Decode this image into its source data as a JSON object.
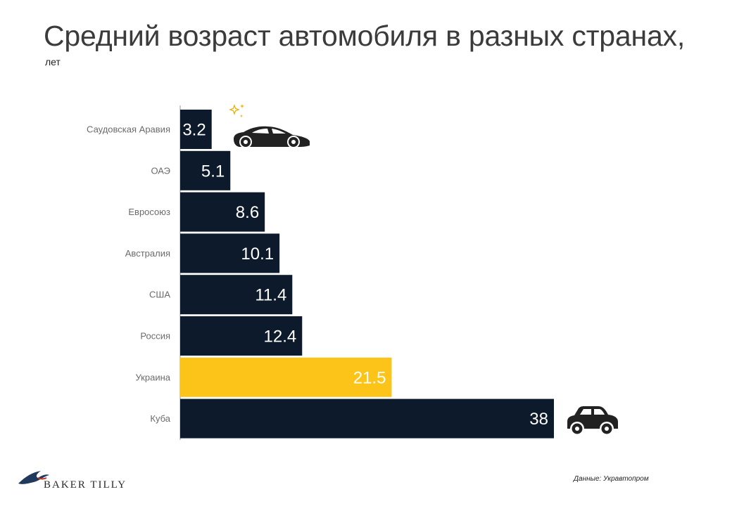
{
  "title": "Средний возраст автомобиля в разных странах,",
  "subtitle": "лет",
  "chart_data": {
    "type": "bar",
    "orientation": "horizontal",
    "categories": [
      "Саудовская Аравия",
      "ОАЭ",
      "Евросоюз",
      "Австралия",
      "США",
      "Россия",
      "Украина",
      "Куба"
    ],
    "values": [
      3.2,
      5.1,
      8.6,
      10.1,
      11.4,
      12.4,
      21.5,
      38
    ],
    "value_labels": [
      "3.2",
      "5.1",
      "8.6",
      "10.1",
      "11.4",
      "12.4",
      "21.5",
      "38"
    ],
    "highlight": "Украина",
    "xlim": [
      0,
      38
    ],
    "grid": false,
    "colors": {
      "bar": "#0d1a2b",
      "highlight": "#fcc419",
      "label_text": "#ffffff",
      "axis": "#9a9a9a"
    }
  },
  "icons": {
    "new_car": "sports-car-icon",
    "sparkle": "sparkle-icon",
    "old_car": "old-car-icon"
  },
  "source": "Данные: Укравтопром",
  "logo": {
    "name": "BAKER TILLY"
  }
}
